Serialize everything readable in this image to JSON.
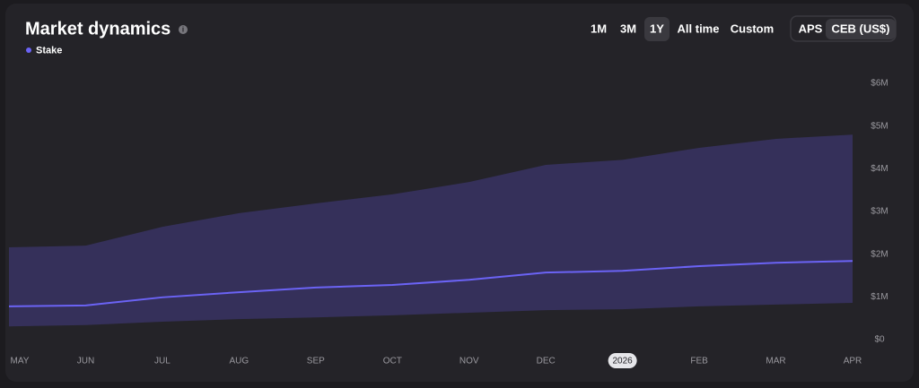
{
  "chart_data": {
    "type": "band-line",
    "title": "Market dynamics",
    "ranges": [
      "1M",
      "3M",
      "1Y",
      "All time",
      "Custom"
    ],
    "selected_range": "1Y",
    "currencies": [
      "APS",
      "CEB (US$)"
    ],
    "selected_currency": "CEB (US$)",
    "categories": [
      "MAY",
      "JUN",
      "JUL",
      "AUG",
      "SEP",
      "OCT",
      "NOV",
      "DEC",
      "2026",
      "FEB",
      "MAR",
      "APR"
    ],
    "series": [
      {
        "name": "Stake",
        "color": "#6b63f5",
        "values": [
          780000,
          800000,
          990000,
          1110000,
          1220000,
          1280000,
          1400000,
          1570000,
          1610000,
          1720000,
          1800000,
          1840000
        ]
      }
    ],
    "band": {
      "color": "#35305a",
      "upper": [
        2160000,
        2200000,
        2640000,
        2960000,
        3190000,
        3400000,
        3690000,
        4090000,
        4210000,
        4490000,
        4700000,
        4800000
      ],
      "lower": [
        310000,
        340000,
        420000,
        480000,
        520000,
        570000,
        630000,
        690000,
        710000,
        780000,
        820000,
        860000
      ]
    },
    "ylim": [
      0,
      6000000
    ],
    "yticks": [
      {
        "value": 0,
        "label": "$0"
      },
      {
        "value": 1000000,
        "label": "$1M"
      },
      {
        "value": 2000000,
        "label": "$2M"
      },
      {
        "value": 3000000,
        "label": "$3M"
      },
      {
        "value": 4000000,
        "label": "$4M"
      },
      {
        "value": 5000000,
        "label": "$5M"
      },
      {
        "value": 6000000,
        "label": "$6M"
      }
    ]
  }
}
